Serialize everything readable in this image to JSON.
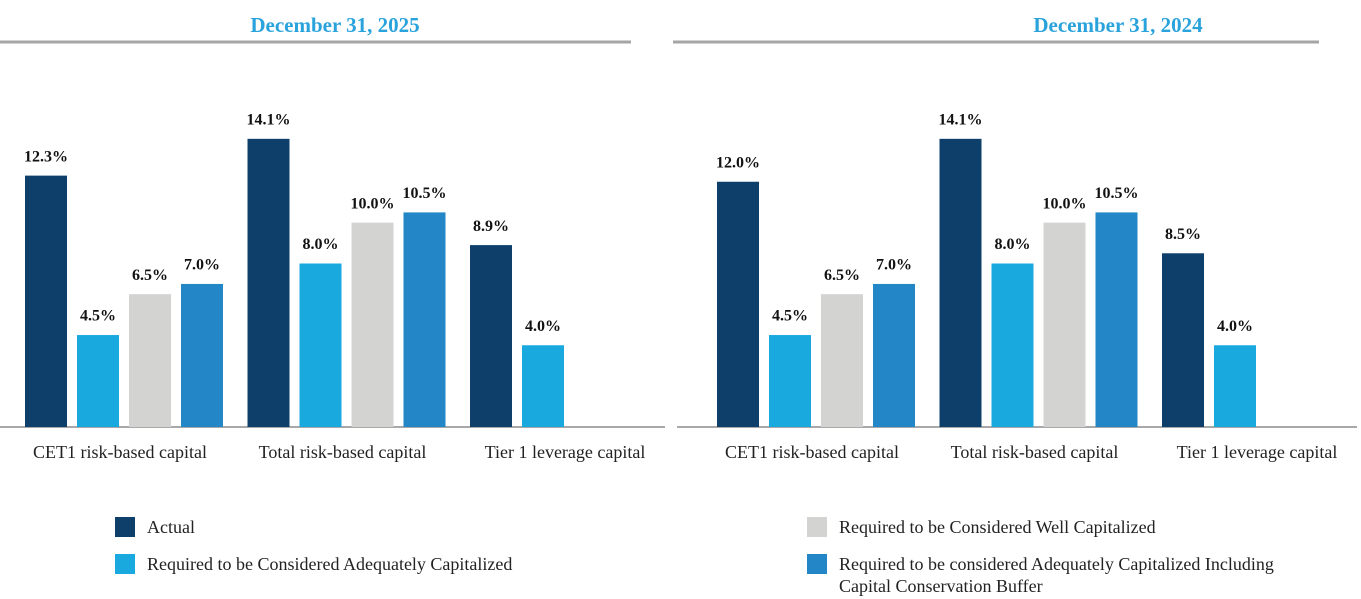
{
  "chart_data": [
    {
      "type": "bar",
      "title": "December 31, 2025",
      "categories": [
        "CET1 risk-based capital",
        "Total risk-based capital",
        "Tier 1 leverage capital"
      ],
      "ylim": [
        0,
        16
      ],
      "series": [
        {
          "name": "Actual",
          "color": "#0e3f6b",
          "values": [
            12.3,
            14.1,
            8.9
          ],
          "value_labels": [
            "12.3%",
            "14.1%",
            "8.9%"
          ]
        },
        {
          "name": "Required to be Considered Adequately Capitalized",
          "color": "#1aa9df",
          "values": [
            4.5,
            8.0,
            4.0
          ],
          "value_labels": [
            "4.5%",
            "8.0%",
            "4.0%"
          ]
        },
        {
          "name": "Required to be Considered Well Capitalized",
          "color": "#d3d3d1",
          "values": [
            6.5,
            10.0,
            null
          ],
          "value_labels": [
            "6.5%",
            "10.0%",
            null
          ]
        },
        {
          "name": "Required to be considered Adequately Capitalized Including Capital Conservation Buffer",
          "color": "#2386c6",
          "values": [
            7.0,
            10.5,
            null
          ],
          "value_labels": [
            "7.0%",
            "10.5%",
            null
          ]
        }
      ]
    },
    {
      "type": "bar",
      "title": "December 31, 2024",
      "categories": [
        "CET1 risk-based capital",
        "Total risk-based capital",
        "Tier 1 leverage capital"
      ],
      "ylim": [
        0,
        16
      ],
      "series": [
        {
          "values": [
            12.0,
            14.1,
            8.5
          ],
          "value_labels": [
            "12.0%",
            "14.1%",
            "8.5%"
          ]
        },
        {
          "values": [
            4.5,
            8.0,
            4.0
          ],
          "value_labels": [
            "4.5%",
            "8.0%",
            "4.0%"
          ]
        },
        {
          "values": [
            6.5,
            10.0,
            null
          ],
          "value_labels": [
            "6.5%",
            "10.0%",
            null
          ]
        },
        {
          "values": [
            7.0,
            10.5,
            null
          ],
          "value_labels": [
            "7.0%",
            "10.5%",
            null
          ]
        }
      ]
    }
  ]
}
